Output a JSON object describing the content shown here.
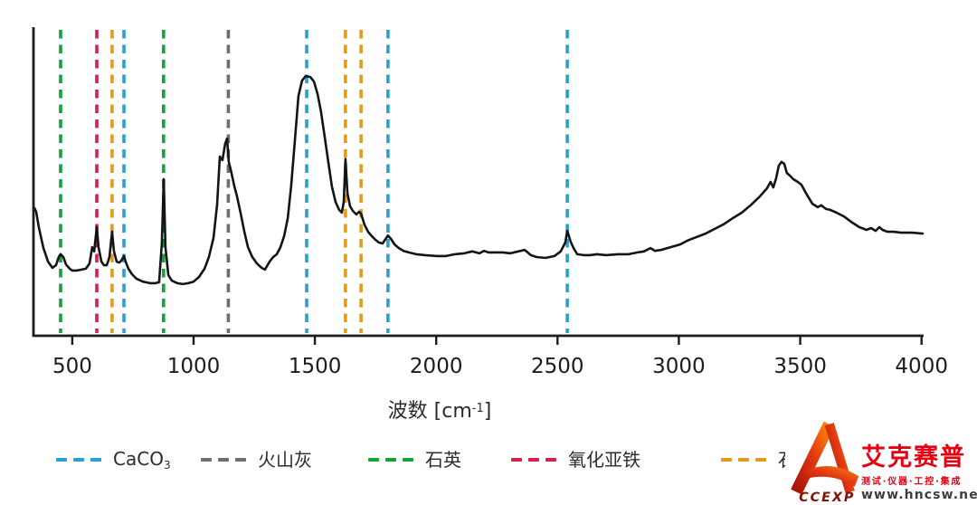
{
  "chart_data": {
    "type": "line",
    "title": "",
    "xlabel": {
      "text": "波数 [cm",
      "sup": "-1",
      "suffix": "]"
    },
    "ylabel": "",
    "x_ticks": [
      500,
      1000,
      1500,
      2000,
      2500,
      3000,
      3500,
      4000
    ],
    "x_range": [
      340,
      4005
    ],
    "grid": false,
    "legend_position": "bottom",
    "spectrum": {
      "name": "spectrum",
      "color": "#141414",
      "x": [
        344,
        351,
        362,
        381,
        400,
        418,
        433,
        444,
        452,
        463,
        474,
        489,
        500,
        519,
        538,
        556,
        571,
        582,
        590,
        601,
        608,
        620,
        631,
        642,
        653,
        664,
        672,
        683,
        694,
        702,
        713,
        720,
        731,
        746,
        765,
        791,
        821,
        843,
        858,
        869,
        877,
        884,
        896,
        910,
        933,
        955,
        978,
        1000,
        1022,
        1045,
        1063,
        1082,
        1097,
        1108,
        1119,
        1130,
        1138,
        1145,
        1156,
        1168,
        1179,
        1194,
        1209,
        1224,
        1242,
        1261,
        1280,
        1294,
        1313,
        1328,
        1343,
        1358,
        1373,
        1388,
        1402,
        1417,
        1432,
        1447,
        1462,
        1481,
        1496,
        1511,
        1525,
        1540,
        1555,
        1570,
        1585,
        1600,
        1611,
        1619,
        1626,
        1634,
        1645,
        1656,
        1671,
        1682,
        1690,
        1704,
        1719,
        1734,
        1749,
        1764,
        1779,
        1794,
        1801,
        1813,
        1828,
        1846,
        1865,
        1887,
        1917,
        1954,
        2003,
        2040,
        2077,
        2115,
        2148,
        2178,
        2197,
        2215,
        2245,
        2275,
        2305,
        2338,
        2364,
        2390,
        2413,
        2450,
        2487,
        2513,
        2532,
        2540,
        2554,
        2566,
        2581,
        2607,
        2633,
        2663,
        2700,
        2748,
        2793,
        2830,
        2856,
        2883,
        2901,
        2927,
        2953,
        2979,
        3006,
        3035,
        3073,
        3110,
        3147,
        3184,
        3222,
        3259,
        3296,
        3334,
        3363,
        3378,
        3389,
        3401,
        3412,
        3423,
        3434,
        3445,
        3457,
        3471,
        3490,
        3505,
        3527,
        3550,
        3572,
        3587,
        3606,
        3624,
        3650,
        3680,
        3714,
        3744,
        3773,
        3792,
        3811,
        3826,
        3840,
        3859,
        3885,
        3915,
        3960,
        4005
      ],
      "y": [
        0.415,
        0.403,
        0.353,
        0.285,
        0.241,
        0.221,
        0.229,
        0.256,
        0.265,
        0.256,
        0.232,
        0.218,
        0.212,
        0.212,
        0.215,
        0.218,
        0.235,
        0.288,
        0.274,
        0.353,
        0.288,
        0.241,
        0.229,
        0.229,
        0.256,
        0.338,
        0.274,
        0.241,
        0.238,
        0.244,
        0.259,
        0.241,
        0.218,
        0.2,
        0.185,
        0.176,
        0.171,
        0.171,
        0.174,
        0.3,
        0.509,
        0.288,
        0.197,
        0.179,
        0.171,
        0.168,
        0.171,
        0.176,
        0.191,
        0.218,
        0.256,
        0.318,
        0.426,
        0.582,
        0.571,
        0.624,
        0.641,
        0.565,
        0.529,
        0.485,
        0.453,
        0.397,
        0.338,
        0.288,
        0.256,
        0.235,
        0.221,
        0.215,
        0.241,
        0.256,
        0.265,
        0.288,
        0.324,
        0.382,
        0.485,
        0.632,
        0.779,
        0.829,
        0.844,
        0.841,
        0.826,
        0.785,
        0.729,
        0.647,
        0.565,
        0.485,
        0.435,
        0.409,
        0.4,
        0.435,
        0.574,
        0.462,
        0.421,
        0.406,
        0.394,
        0.403,
        0.397,
        0.362,
        0.338,
        0.324,
        0.312,
        0.303,
        0.3,
        0.318,
        0.326,
        0.315,
        0.297,
        0.285,
        0.276,
        0.271,
        0.265,
        0.262,
        0.259,
        0.259,
        0.265,
        0.268,
        0.274,
        0.268,
        0.276,
        0.271,
        0.271,
        0.271,
        0.268,
        0.274,
        0.279,
        0.262,
        0.256,
        0.253,
        0.259,
        0.274,
        0.303,
        0.341,
        0.306,
        0.285,
        0.265,
        0.262,
        0.262,
        0.265,
        0.262,
        0.265,
        0.265,
        0.271,
        0.274,
        0.285,
        0.276,
        0.279,
        0.285,
        0.291,
        0.297,
        0.309,
        0.321,
        0.332,
        0.347,
        0.362,
        0.382,
        0.4,
        0.424,
        0.453,
        0.479,
        0.5,
        0.482,
        0.512,
        0.553,
        0.565,
        0.559,
        0.529,
        0.521,
        0.509,
        0.5,
        0.491,
        0.459,
        0.429,
        0.418,
        0.424,
        0.412,
        0.409,
        0.4,
        0.388,
        0.368,
        0.353,
        0.344,
        0.35,
        0.341,
        0.353,
        0.344,
        0.338,
        0.338,
        0.335,
        0.335,
        0.332
      ]
    },
    "markers": [
      {
        "label": "CaCO₃",
        "color": "#2b9fd3",
        "positions": [
          713,
          1466,
          1801,
          2540
        ]
      },
      {
        "label": "火山灰",
        "color": "#6e6e6e",
        "positions": [
          1143
        ]
      },
      {
        "label": "石英",
        "color": "#12a43b",
        "positions": [
          452,
          876
        ]
      },
      {
        "label": "氧化亚铁",
        "color": "#d4214a",
        "positions": [
          601
        ]
      },
      {
        "label": "石膏",
        "color": "#e49b1d",
        "positions": [
          664,
          1626,
          1690
        ]
      }
    ]
  },
  "watermark": {
    "logo_text": "CCEXP",
    "brand": "艾克赛普",
    "tagline": "测试·仪器·工控·集成",
    "url": "www.hncsw.net",
    "brand_color": "#e60012"
  }
}
